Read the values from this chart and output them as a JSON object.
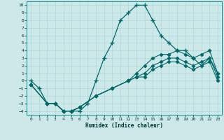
{
  "xlabel": "Humidex (Indice chaleur)",
  "ylabel": "",
  "background_color": "#cde8e8",
  "grid_color": "#b0d8d8",
  "line_color": "#006666",
  "xlim": [
    -0.5,
    23.5
  ],
  "ylim": [
    -4.5,
    10.5
  ],
  "xticks": [
    0,
    1,
    2,
    3,
    4,
    5,
    6,
    7,
    8,
    9,
    10,
    11,
    12,
    13,
    14,
    15,
    16,
    17,
    18,
    19,
    20,
    21,
    22,
    23
  ],
  "yticks": [
    -4,
    -3,
    -2,
    -1,
    0,
    1,
    2,
    3,
    4,
    5,
    6,
    7,
    8,
    9,
    10
  ],
  "series": [
    {
      "x": [
        0,
        1,
        2,
        3,
        4,
        5,
        6,
        7,
        8,
        9,
        10,
        11,
        12,
        13,
        14,
        15,
        16,
        17,
        18,
        19,
        20,
        21,
        22,
        23
      ],
      "y": [
        0,
        -1,
        -3,
        -3,
        -4,
        -4,
        -4,
        -3,
        0,
        3,
        5,
        8,
        9,
        10,
        10,
        8,
        6,
        5,
        4,
        4,
        3,
        2,
        3,
        1
      ],
      "marker": "+",
      "markersize": 4,
      "linewidth": 0.9,
      "markeredgewidth": 1.0
    },
    {
      "x": [
        0,
        2,
        3,
        4,
        5,
        6,
        8,
        10,
        12,
        13,
        14,
        15,
        16,
        17,
        18,
        19,
        20,
        21,
        22,
        23
      ],
      "y": [
        -0.5,
        -3,
        -3,
        -4,
        -4,
        -3.5,
        -2,
        -1,
        0,
        1,
        2,
        3,
        3.5,
        3.5,
        4,
        3.5,
        3,
        3.5,
        4,
        1
      ],
      "marker": "D",
      "markersize": 2.5,
      "linewidth": 0.8,
      "markeredgewidth": 0.6
    },
    {
      "x": [
        0,
        2,
        3,
        4,
        5,
        6,
        8,
        10,
        12,
        13,
        14,
        15,
        16,
        17,
        18,
        19,
        20,
        21,
        22,
        23
      ],
      "y": [
        -0.5,
        -3,
        -3,
        -4,
        -4,
        -3.5,
        -2,
        -1,
        0,
        0.5,
        1,
        2,
        2.5,
        3,
        3,
        2.5,
        2,
        2.5,
        3,
        0.5
      ],
      "marker": "D",
      "markersize": 2.5,
      "linewidth": 0.8,
      "markeredgewidth": 0.6
    },
    {
      "x": [
        0,
        2,
        3,
        4,
        5,
        6,
        8,
        10,
        12,
        13,
        14,
        15,
        16,
        17,
        18,
        19,
        20,
        21,
        22,
        23
      ],
      "y": [
        -0.5,
        -3,
        -3,
        -4,
        -4,
        -3.5,
        -2,
        -1,
        0,
        0.5,
        0.5,
        1.5,
        2,
        2.5,
        2.5,
        2,
        1.5,
        2,
        2.5,
        0
      ],
      "marker": "D",
      "markersize": 2.5,
      "linewidth": 0.8,
      "markeredgewidth": 0.6
    }
  ]
}
